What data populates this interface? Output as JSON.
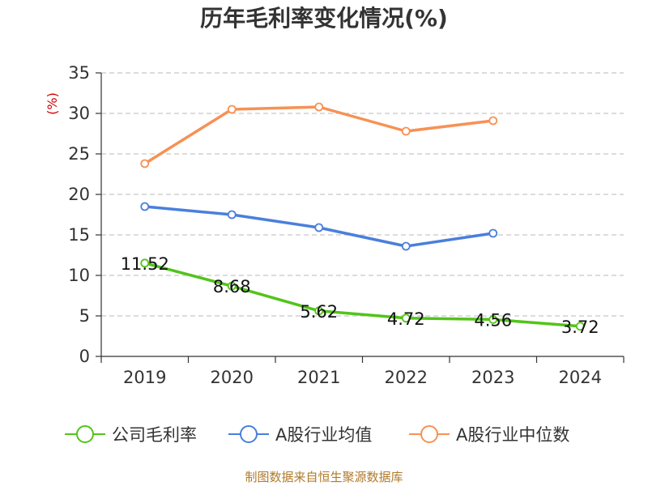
{
  "chart_data": {
    "type": "line",
    "title": "历年毛利率变化情况(%)",
    "ylabel": "(%)",
    "xlabel": "",
    "categories": [
      "2019",
      "2020",
      "2021",
      "2022",
      "2023",
      "2024"
    ],
    "ylim": [
      0,
      35
    ],
    "yticks": [
      0,
      5,
      10,
      15,
      20,
      25,
      30,
      35
    ],
    "grid": true,
    "legend_position": "bottom",
    "series": [
      {
        "name": "公司毛利率",
        "color": "#52c41a",
        "values": [
          11.52,
          8.68,
          5.62,
          4.72,
          4.56,
          3.72
        ],
        "labels": [
          "11.52",
          "8.68",
          "5.62",
          "4.72",
          "4.56",
          "3.72"
        ]
      },
      {
        "name": "A股行业均值",
        "color": "#4a7fdc",
        "values": [
          18.5,
          17.5,
          15.9,
          13.6,
          15.2,
          null
        ]
      },
      {
        "name": "A股行业中位数",
        "color": "#f79155",
        "values": [
          23.8,
          30.5,
          30.8,
          27.8,
          29.1,
          null
        ]
      }
    ],
    "source": "制图数据来自恒生聚源数据库"
  }
}
